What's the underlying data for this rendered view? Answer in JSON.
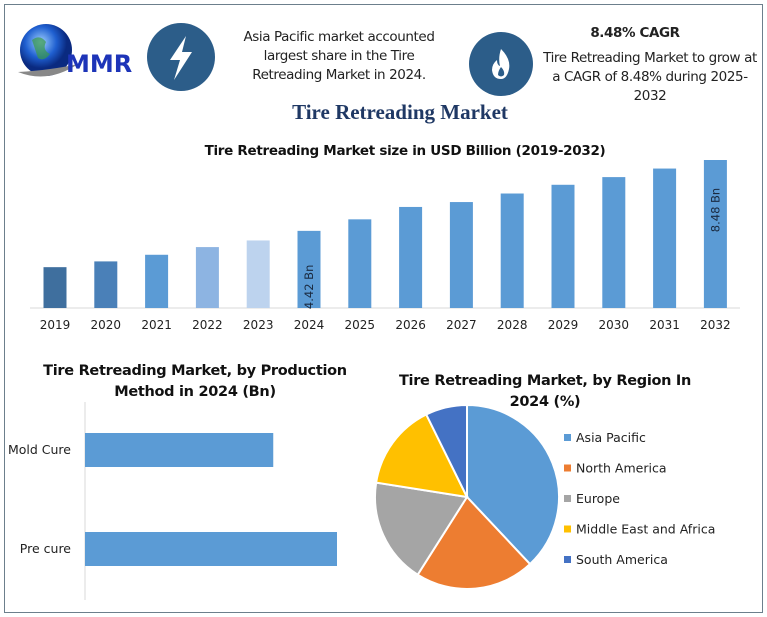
{
  "header": {
    "logo_text": "MMR",
    "left_info": "Asia Pacific market accounted largest share in the Tire Retreading Market in 2024.",
    "cagr_title": "8.48% CAGR",
    "cagr_text": "Tire Retreading Market to grow at a CAGR of 8.48% during 2025-2032",
    "main_title": "Tire Retreading Market",
    "icons": [
      "globe-logo-icon",
      "lightning-icon",
      "flame-icon"
    ]
  },
  "chart_data": [
    {
      "type": "bar",
      "title": "Tire Retreading Market size in USD Billion (2019-2032)",
      "categories": [
        "2019",
        "2020",
        "2021",
        "2022",
        "2023",
        "2024",
        "2025",
        "2026",
        "2027",
        "2028",
        "2029",
        "2030",
        "2031",
        "2032"
      ],
      "values": [
        2.34,
        2.67,
        3.05,
        3.49,
        3.87,
        4.42,
        5.08,
        5.79,
        6.07,
        6.56,
        7.06,
        7.5,
        7.99,
        8.48
      ],
      "colors": [
        "#3f6f9e",
        "#4a80b8",
        "#5b9bd5",
        "#8db4e2",
        "#bdd3ee",
        "#5b9bd5",
        "#5b9bd5",
        "#5b9bd5",
        "#5b9bd5",
        "#5b9bd5",
        "#5b9bd5",
        "#5b9bd5",
        "#5b9bd5",
        "#5b9bd5"
      ],
      "data_labels": {
        "2024": "4.42 Bn",
        "2032": "8.48 Bn"
      },
      "ylim": [
        0,
        8.48
      ],
      "grid": false
    },
    {
      "type": "bar",
      "orientation": "horizontal",
      "title": "Tire Retreading Market, by Production Method in 2024 (Bn)",
      "categories": [
        "Mold Cure",
        "Pre cure"
      ],
      "values": [
        1.89,
        2.53
      ],
      "color": "#5b9bd5"
    },
    {
      "type": "pie",
      "title": "Tire Retreading Market, by Region In 2024 (%)",
      "categories": [
        "Asia Pacific",
        "North America",
        "Europe",
        "Middle East and Africa",
        "South America"
      ],
      "values": [
        38,
        21,
        18.5,
        15.2,
        7.3
      ],
      "colors": [
        "#5b9bd5",
        "#ed7d31",
        "#a5a5a5",
        "#ffc000",
        "#4472c4"
      ],
      "legend": "right"
    }
  ]
}
